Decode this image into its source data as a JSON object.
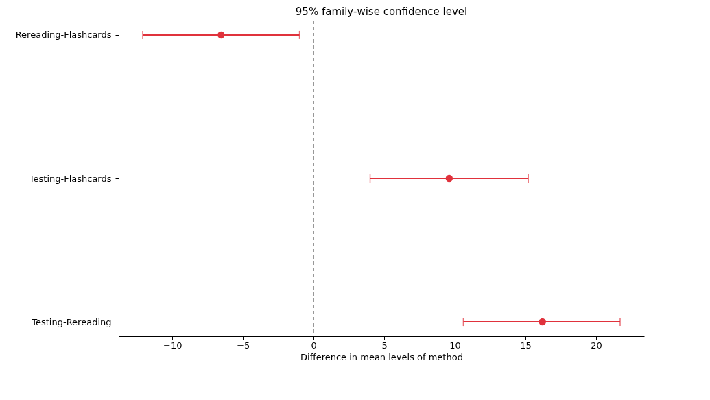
{
  "chart_data": {
    "type": "scatter",
    "title": "95% family-wise confidence level",
    "xlabel": "Difference in mean levels of method",
    "orientation": "horizontal",
    "categories": [
      "Rereading-Flashcards",
      "Testing-Flashcards",
      "Testing-Rereading"
    ],
    "values": [
      -6.55,
      9.6,
      16.2
    ],
    "errors": [
      [
        -12.1,
        -1.0
      ],
      [
        4.0,
        15.2
      ],
      [
        10.6,
        21.7
      ]
    ],
    "color": "#e0323c",
    "marker": "circle",
    "grid": false,
    "xlim": [
      -13.8,
      23.4
    ],
    "xticks": [
      {
        "value": -10,
        "label": "−10"
      },
      {
        "value": -5,
        "label": "−5"
      },
      0,
      5,
      10,
      15,
      20
    ],
    "ref_lines": [
      {
        "axis": "x",
        "value": 0,
        "color": "#808080",
        "line_style": "dashed"
      }
    ]
  }
}
